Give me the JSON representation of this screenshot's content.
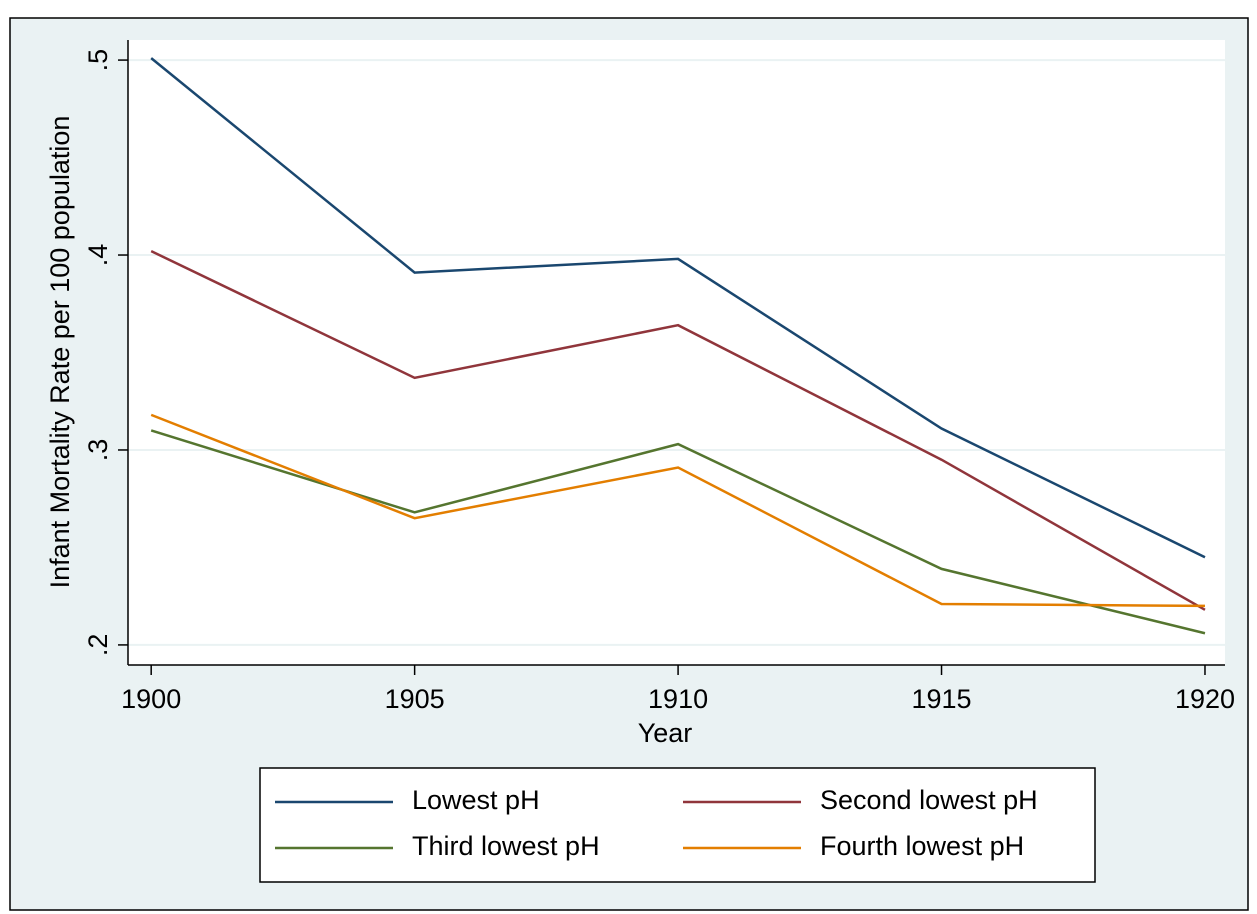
{
  "chart_data": {
    "type": "line",
    "x_label": "Year",
    "y_label": "Infant Mortality Rate per 100 population",
    "x": [
      1900,
      1905,
      1910,
      1915,
      1920
    ],
    "series": [
      {
        "name": "Lowest pH",
        "color": "#1a476f",
        "values": [
          0.501,
          0.391,
          0.398,
          0.311,
          0.245
        ]
      },
      {
        "name": "Second lowest pH",
        "color": "#90353b",
        "values": [
          0.402,
          0.337,
          0.364,
          0.295,
          0.218
        ]
      },
      {
        "name": "Third lowest pH",
        "color": "#55752f",
        "values": [
          0.31,
          0.268,
          0.303,
          0.239,
          0.206
        ]
      },
      {
        "name": "Fourth lowest pH",
        "color": "#e37e00",
        "values": [
          0.318,
          0.265,
          0.291,
          0.221,
          0.22
        ]
      }
    ],
    "xlim": [
      1899.56,
      1920.38
    ],
    "xticks": [
      1900,
      1905,
      1910,
      1915,
      1920
    ],
    "ylim": [
      0.1897,
      0.5103
    ],
    "yticks": [
      {
        "value": 0.2,
        "label": ".2"
      },
      {
        "value": 0.3,
        "label": ".3"
      },
      {
        "value": 0.4,
        "label": ".4"
      },
      {
        "value": 0.5,
        "label": ".5"
      }
    ],
    "grid": true,
    "legend": "bottom"
  }
}
